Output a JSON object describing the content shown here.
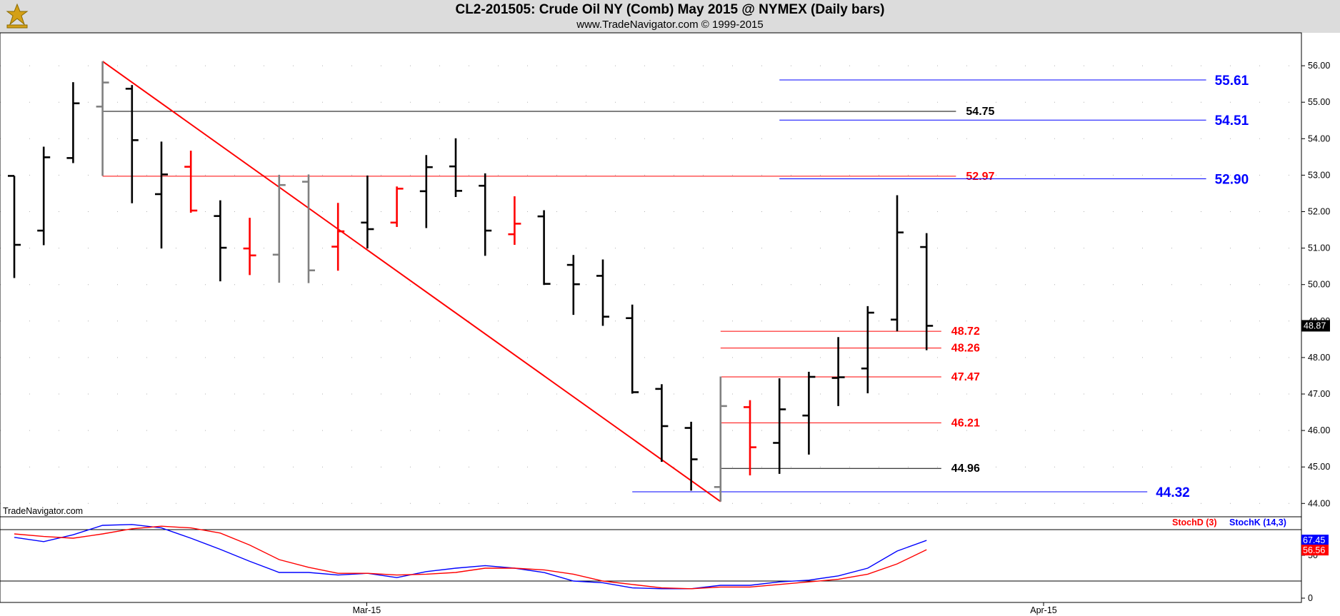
{
  "header": {
    "title": "CL2-201505:  Crude Oil NY (Comb) May 2015 @ NYMEX  (Daily bars)",
    "subtitle": "www.TradeNavigator.com © 1999-2015"
  },
  "watermark": "TradeNavigator.com",
  "colors": {
    "up": "#000000",
    "down": "#ff0000",
    "inside": "#808080",
    "close_tick_up": "#00dd00",
    "blue": "#0000ff",
    "red": "#ff0000",
    "black": "#000000"
  },
  "chart_data": [
    {
      "type": "ohlc",
      "name": "CL2-201505 Daily bars",
      "y_ticks": [
        "56.00",
        "55.00",
        "54.00",
        "53.00",
        "52.00",
        "51.00",
        "50.00",
        "49.00",
        "48.00",
        "47.00",
        "46.00",
        "45.00",
        "44.00"
      ],
      "ylim": [
        43.4,
        56.35
      ],
      "last_price": "48.87",
      "x_labels": [
        {
          "label": "Mar-15",
          "bar_index": 12
        },
        {
          "label": "Apr-15",
          "bar_index": 35
        }
      ],
      "bars": [
        {
          "o": 52.98,
          "h": 52.98,
          "l": 50.18,
          "c": 51.09,
          "color": "up"
        },
        {
          "o": 51.48,
          "h": 53.78,
          "l": 51.08,
          "c": 53.49,
          "color": "up"
        },
        {
          "o": 53.47,
          "h": 55.55,
          "l": 53.33,
          "c": 54.97,
          "color": "up"
        },
        {
          "o": 54.88,
          "h": 56.12,
          "l": 52.98,
          "c": 55.54,
          "color": "inside"
        },
        {
          "o": 55.37,
          "h": 55.47,
          "l": 52.23,
          "c": 53.96,
          "color": "up"
        },
        {
          "o": 52.48,
          "h": 53.92,
          "l": 50.99,
          "c": 53.02,
          "color": "up"
        },
        {
          "o": 53.23,
          "h": 53.67,
          "l": 51.97,
          "c": 52.03,
          "color": "down"
        },
        {
          "o": 51.88,
          "h": 52.31,
          "l": 50.09,
          "c": 51.01,
          "color": "up"
        },
        {
          "o": 50.99,
          "h": 51.83,
          "l": 50.26,
          "c": 50.8,
          "color": "down"
        },
        {
          "o": 50.82,
          "h": 53.01,
          "l": 50.05,
          "c": 52.73,
          "color": "inside"
        },
        {
          "o": 52.82,
          "h": 53.02,
          "l": 50.04,
          "c": 50.39,
          "color": "inside"
        },
        {
          "o": 51.04,
          "h": 52.24,
          "l": 50.38,
          "c": 51.46,
          "color": "down"
        },
        {
          "o": 51.7,
          "h": 52.99,
          "l": 50.99,
          "c": 51.52,
          "color": "up"
        },
        {
          "o": 51.7,
          "h": 52.69,
          "l": 51.58,
          "c": 52.63,
          "color": "down"
        },
        {
          "o": 52.56,
          "h": 53.55,
          "l": 51.55,
          "c": 53.22,
          "color": "up"
        },
        {
          "o": 53.24,
          "h": 54.01,
          "l": 52.4,
          "c": 52.57,
          "color": "up"
        },
        {
          "o": 52.71,
          "h": 53.05,
          "l": 50.79,
          "c": 51.48,
          "color": "up"
        },
        {
          "o": 51.38,
          "h": 52.42,
          "l": 51.09,
          "c": 51.67,
          "color": "down"
        },
        {
          "o": 51.87,
          "h": 52.04,
          "l": 49.99,
          "c": 50.02,
          "color": "up"
        },
        {
          "o": 50.54,
          "h": 50.81,
          "l": 49.17,
          "c": 50.01,
          "color": "up"
        },
        {
          "o": 50.24,
          "h": 50.69,
          "l": 48.87,
          "c": 49.12,
          "color": "up"
        },
        {
          "o": 49.08,
          "h": 49.45,
          "l": 47.01,
          "c": 47.05,
          "color": "up"
        },
        {
          "o": 47.14,
          "h": 47.27,
          "l": 45.14,
          "c": 46.12,
          "color": "up"
        },
        {
          "o": 46.07,
          "h": 46.24,
          "l": 44.35,
          "c": 45.21,
          "color": "up"
        },
        {
          "o": 44.45,
          "h": 47.48,
          "l": 44.05,
          "c": 46.67,
          "color": "inside"
        },
        {
          "o": 46.64,
          "h": 46.83,
          "l": 44.77,
          "c": 45.54,
          "color": "down"
        },
        {
          "o": 45.66,
          "h": 47.43,
          "l": 44.81,
          "c": 46.58,
          "color": "up"
        },
        {
          "o": 46.41,
          "h": 47.61,
          "l": 45.34,
          "c": 47.47,
          "color": "up"
        },
        {
          "o": 47.44,
          "h": 48.56,
          "l": 46.67,
          "c": 47.46,
          "color": "up"
        },
        {
          "o": 47.7,
          "h": 49.41,
          "l": 47.02,
          "c": 49.23,
          "color": "up"
        },
        {
          "o": 49.04,
          "h": 52.45,
          "l": 48.72,
          "c": 51.43,
          "color": "up"
        },
        {
          "o": 51.03,
          "h": 51.41,
          "l": 48.2,
          "c": 48.87,
          "color": "up"
        }
      ],
      "lines": [
        {
          "label": "55.61",
          "value": 55.61,
          "color": "blue",
          "from": 26,
          "to": 40.5
        },
        {
          "label": "54.75",
          "value": 54.75,
          "color": "black",
          "from": 3,
          "to": 32
        },
        {
          "label": "54.51",
          "value": 54.51,
          "color": "blue",
          "from": 26,
          "to": 40.5
        },
        {
          "label": "52.97",
          "value": 52.97,
          "color": "red",
          "from": 3,
          "to": 32
        },
        {
          "label": "52.90",
          "value": 52.9,
          "color": "blue",
          "from": 26,
          "to": 40.5
        },
        {
          "label": "48.72",
          "value": 48.72,
          "color": "red",
          "from": 24,
          "to": 31.5
        },
        {
          "label": "48.26",
          "value": 48.26,
          "color": "red",
          "from": 24,
          "to": 31.5
        },
        {
          "label": "47.47",
          "value": 47.47,
          "color": "red",
          "from": 24,
          "to": 31.5
        },
        {
          "label": "46.21",
          "value": 46.21,
          "color": "red",
          "from": 24,
          "to": 31.5
        },
        {
          "label": "44.96",
          "value": 44.96,
          "color": "black",
          "from": 24,
          "to": 31.5
        },
        {
          "label": "44.32",
          "value": 44.32,
          "color": "blue",
          "from": 21,
          "to": 38.5
        }
      ],
      "trendline": {
        "from": {
          "bar_index": 3,
          "value": 56.12
        },
        "to": {
          "bar_index": 24,
          "value": 44.05
        },
        "color": "red"
      }
    },
    {
      "type": "line",
      "name": "Stochastic",
      "legend": [
        {
          "label": "StochD (3)",
          "color": "red"
        },
        {
          "label": "StochK (14,3)",
          "color": "blue"
        }
      ],
      "y_ticks": [
        "50",
        "0"
      ],
      "ylim": [
        0,
        100
      ],
      "levels": [
        80,
        20
      ],
      "last_values": {
        "k": "67.45",
        "d": "56.56"
      },
      "series": [
        {
          "name": "StochK (14,3)",
          "color": "blue",
          "values": [
            71,
            66,
            74,
            85,
            86,
            82,
            70,
            57,
            43,
            30,
            30,
            27,
            29,
            24,
            31,
            35,
            38,
            35,
            30,
            20,
            18,
            12,
            11,
            11,
            15,
            15,
            19,
            21,
            26,
            35,
            55,
            67.45
          ]
        },
        {
          "name": "StochD (3)",
          "color": "red",
          "values": [
            75,
            72,
            70,
            75,
            81,
            84,
            82,
            76,
            62,
            45,
            36,
            29,
            29,
            27,
            28,
            30,
            35,
            35,
            33,
            28,
            20,
            16,
            12,
            11,
            13,
            13,
            16,
            19,
            22,
            28,
            40,
            56.56
          ]
        }
      ]
    }
  ]
}
